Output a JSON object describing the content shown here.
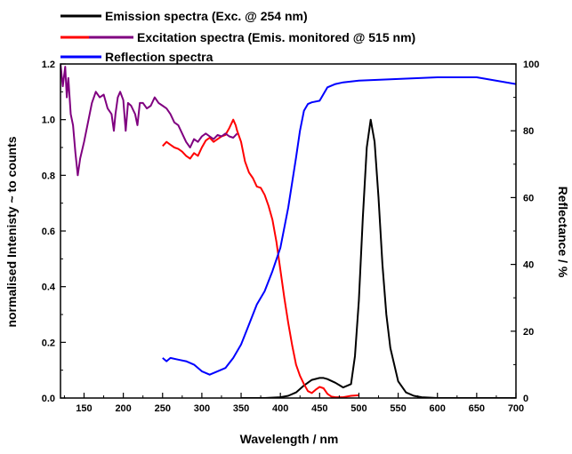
{
  "chart_data": {
    "type": "line",
    "title": "",
    "xlabel": "Wavelength / nm",
    "ylabel_left": "normalised Intenisty ~ to counts",
    "ylabel_right": "Reflectance / %",
    "xlim": [
      120,
      700
    ],
    "ylim_left": [
      0,
      1.2
    ],
    "ylim_right": [
      0,
      100
    ],
    "x_ticks": [
      "150",
      "200",
      "250",
      "300",
      "350",
      "400",
      "450",
      "500",
      "550",
      "600",
      "650",
      "700"
    ],
    "y_left_ticks": [
      "0.0",
      "0.2",
      "0.4",
      "0.6",
      "0.8",
      "1.0",
      "1.2"
    ],
    "y_right_ticks": [
      "0",
      "20",
      "40",
      "60",
      "80",
      "100"
    ],
    "grid": false,
    "legend_position": "top",
    "series": [
      {
        "name": "Emission spectra (Exc. @ 254 nm)",
        "color": "#000000",
        "axis": "left",
        "x": [
          350,
          380,
          400,
          410,
          420,
          430,
          440,
          450,
          455,
          460,
          470,
          480,
          490,
          495,
          500,
          505,
          510,
          515,
          520,
          525,
          530,
          535,
          540,
          550,
          560,
          570,
          580,
          600,
          650,
          700
        ],
        "y": [
          0.0,
          0.0,
          0.003,
          0.008,
          0.02,
          0.045,
          0.065,
          0.072,
          0.072,
          0.068,
          0.055,
          0.038,
          0.05,
          0.15,
          0.35,
          0.65,
          0.9,
          1.0,
          0.92,
          0.72,
          0.48,
          0.3,
          0.18,
          0.06,
          0.02,
          0.008,
          0.003,
          0.0,
          0.0,
          0.0
        ]
      },
      {
        "name": "Excitation spectra (Emis. monitored @ 515 nm)",
        "color": "#ff0000",
        "axis": "left",
        "x": [
          250,
          255,
          260,
          265,
          270,
          275,
          280,
          285,
          290,
          295,
          300,
          305,
          310,
          315,
          320,
          325,
          330,
          335,
          340,
          343,
          345,
          350,
          355,
          360,
          365,
          370,
          375,
          380,
          385,
          390,
          395,
          400,
          405,
          410,
          415,
          420,
          425,
          430,
          435,
          440,
          445,
          450,
          455,
          460,
          465,
          470,
          480,
          490,
          500
        ],
        "y": [
          0.905,
          0.92,
          0.91,
          0.9,
          0.895,
          0.885,
          0.87,
          0.86,
          0.88,
          0.87,
          0.9,
          0.925,
          0.935,
          0.92,
          0.93,
          0.94,
          0.945,
          0.97,
          1.0,
          0.98,
          0.96,
          0.92,
          0.85,
          0.81,
          0.79,
          0.76,
          0.755,
          0.73,
          0.69,
          0.64,
          0.56,
          0.46,
          0.36,
          0.27,
          0.19,
          0.12,
          0.08,
          0.05,
          0.025,
          0.018,
          0.03,
          0.04,
          0.035,
          0.015,
          0.005,
          0.003,
          0.003,
          0.008,
          0.01
        ]
      },
      {
        "name": "",
        "color": "#800080",
        "axis": "left",
        "x": [
          120,
          123,
          126,
          128,
          130,
          133,
          136,
          139,
          142,
          145,
          150,
          155,
          160,
          165,
          170,
          175,
          180,
          185,
          188,
          190,
          193,
          196,
          200,
          203,
          206,
          210,
          215,
          218,
          221,
          225,
          230,
          235,
          240,
          245,
          250,
          255,
          260,
          265,
          270,
          275,
          280,
          285,
          290,
          295,
          300,
          305,
          310,
          315,
          320,
          325,
          330,
          335,
          340,
          345
        ],
        "y": [
          1.2,
          1.12,
          1.19,
          1.08,
          1.15,
          1.02,
          0.98,
          0.88,
          0.8,
          0.86,
          0.92,
          0.99,
          1.06,
          1.1,
          1.08,
          1.09,
          1.04,
          1.02,
          0.96,
          1.02,
          1.08,
          1.1,
          1.07,
          0.96,
          1.06,
          1.05,
          1.02,
          0.98,
          1.06,
          1.06,
          1.04,
          1.05,
          1.08,
          1.06,
          1.05,
          1.04,
          1.02,
          0.99,
          0.98,
          0.95,
          0.92,
          0.9,
          0.93,
          0.92,
          0.94,
          0.95,
          0.94,
          0.93,
          0.945,
          0.94,
          0.95,
          0.94,
          0.935,
          0.95
        ]
      },
      {
        "name": "Reflection spectra",
        "color": "#0000ff",
        "axis": "right",
        "x": [
          250,
          255,
          260,
          270,
          280,
          290,
          300,
          305,
          310,
          320,
          330,
          340,
          350,
          360,
          370,
          380,
          390,
          400,
          410,
          420,
          425,
          430,
          435,
          440,
          450,
          460,
          470,
          480,
          500,
          550,
          600,
          650,
          700
        ],
        "y": [
          12,
          11,
          12,
          11.5,
          11,
          10,
          8,
          7.5,
          7,
          8,
          9,
          12,
          16,
          22,
          28,
          32,
          38,
          45,
          57,
          72,
          80,
          86,
          88,
          88.5,
          89,
          93,
          94,
          94.5,
          95,
          95.5,
          96,
          96,
          94
        ]
      }
    ],
    "legend": [
      {
        "label": "Emission spectra (Exc. @ 254 nm)",
        "colors": [
          "#000000"
        ]
      },
      {
        "label": "Excitation spectra (Emis. monitored @ 515 nm)",
        "colors": [
          "#ff0000",
          "#800080"
        ]
      },
      {
        "label": "Reflection spectra",
        "colors": [
          "#0000ff"
        ]
      }
    ]
  }
}
